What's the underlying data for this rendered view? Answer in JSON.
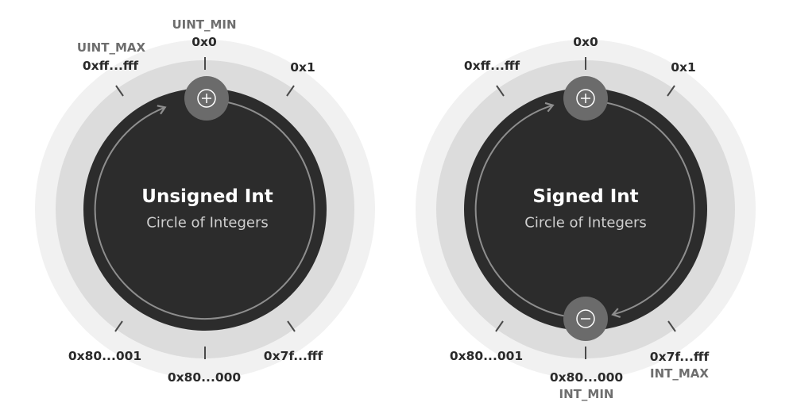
{
  "colors": {
    "outer_ring": "#f1f1f1",
    "mid_ring": "#dcdcdc",
    "core": "#2c2c2c",
    "arrow": "#8e8e8e",
    "badge": "#6b6b6b",
    "tick": "#4a4a4a"
  },
  "unsigned": {
    "title": "Unsigned Int",
    "subtitle": "Circle of Integers",
    "labels": {
      "uint_min": "UINT_MIN",
      "top": "0x0",
      "uint_max": "UINT_MAX",
      "top_left": "0xff...fff",
      "top_right": "0x1",
      "bottom_left": "0x80...001",
      "bottom": "0x80...000",
      "bottom_right": "0x7f...fff"
    },
    "badge_icon": "plus-circle-icon"
  },
  "signed": {
    "title": "Signed Int",
    "subtitle": "Circle of Integers",
    "labels": {
      "top": "0x0",
      "top_left": "0xff...fff",
      "top_right": "0x1",
      "bottom_left": "0x80...001",
      "bottom": "0x80...000",
      "int_min": "INT_MIN",
      "bottom_right": "0x7f...fff",
      "int_max": "INT_MAX"
    },
    "badge_top_icon": "plus-circle-icon",
    "badge_bottom_icon": "minus-circle-icon"
  }
}
